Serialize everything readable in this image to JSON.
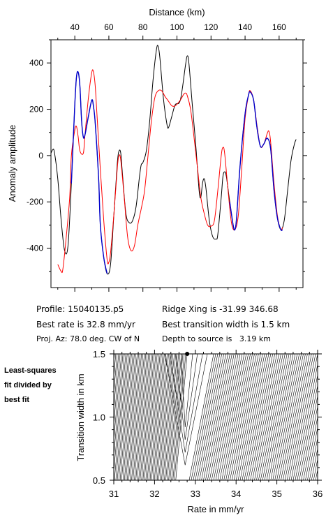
{
  "info": {
    "profile": "Profile: 15040135.p5",
    "best_rate": "Best rate is 32.8 mm/yr",
    "proj_az": "Proj. Az: 78.0 deg. CW of N",
    "ridge_xing": "Ridge Xing is -31.99 346.68",
    "best_transition": "Best transition width is 1.5 km",
    "depth": "Depth to source is   3.19 km"
  },
  "side_note": [
    "Least-squares",
    "fit divided by",
    "best fit"
  ],
  "colors": {
    "observed": "#000000",
    "model": "#ff0000",
    "fit_window": "#0000cc"
  },
  "chart_data": [
    {
      "type": "line",
      "xlabel": "Distance (km)",
      "ylabel": "Anomaly amplitude",
      "xlim": [
        26,
        174
      ],
      "ylim": [
        -570,
        500
      ],
      "xticks": [
        40,
        60,
        80,
        100,
        120,
        140,
        160
      ],
      "yticks": [
        -400,
        -200,
        0,
        200,
        400
      ],
      "grid": false,
      "series": [
        {
          "color": "#000000",
          "points": [
            [
              26,
              10
            ],
            [
              27,
              25
            ],
            [
              28,
              15
            ],
            [
              30,
              -100
            ],
            [
              32,
              -280
            ],
            [
              34,
              -410
            ],
            [
              36,
              -390
            ],
            [
              38,
              -120
            ],
            [
              40,
              220
            ],
            [
              41,
              340
            ],
            [
              42,
              360
            ],
            [
              43,
              300
            ],
            [
              44,
              150
            ],
            [
              45,
              80
            ],
            [
              46,
              90
            ],
            [
              48,
              170
            ],
            [
              50,
              240
            ],
            [
              51,
              210
            ],
            [
              52,
              140
            ],
            [
              54,
              -100
            ],
            [
              55,
              -300
            ],
            [
              57,
              -440
            ],
            [
              59,
              -510
            ],
            [
              61,
              -470
            ],
            [
              63,
              -250
            ],
            [
              65,
              -30
            ],
            [
              66,
              20
            ],
            [
              67,
              10
            ],
            [
              68,
              -80
            ],
            [
              70,
              -250
            ],
            [
              72,
              -290
            ],
            [
              74,
              -280
            ],
            [
              76,
              -220
            ],
            [
              78,
              -90
            ],
            [
              79,
              -40
            ],
            [
              80,
              -30
            ],
            [
              82,
              20
            ],
            [
              84,
              150
            ],
            [
              86,
              330
            ],
            [
              88,
              460
            ],
            [
              89,
              470
            ],
            [
              90,
              420
            ],
            [
              92,
              250
            ],
            [
              94,
              140
            ],
            [
              95,
              120
            ],
            [
              97,
              170
            ],
            [
              99,
              220
            ],
            [
              102,
              240
            ],
            [
              105,
              390
            ],
            [
              106,
              430
            ],
            [
              107,
              400
            ],
            [
              109,
              220
            ],
            [
              111,
              50
            ],
            [
              113,
              -150
            ],
            [
              114,
              -180
            ],
            [
              115,
              -120
            ],
            [
              116,
              -100
            ],
            [
              117,
              -140
            ],
            [
              119,
              -280
            ],
            [
              121,
              -350
            ],
            [
              123,
              -360
            ],
            [
              124,
              -340
            ],
            [
              126,
              -180
            ],
            [
              127,
              -90
            ],
            [
              128,
              -70
            ],
            [
              129,
              -90
            ],
            [
              131,
              -200
            ],
            [
              133,
              -300
            ],
            [
              134,
              -320
            ],
            [
              135,
              -270
            ],
            [
              137,
              -50
            ],
            [
              140,
              180
            ],
            [
              142,
              260
            ],
            [
              143,
              275
            ],
            [
              145,
              240
            ],
            [
              147,
              120
            ],
            [
              149,
              40
            ],
            [
              151,
              50
            ],
            [
              153,
              75
            ],
            [
              155,
              30
            ],
            [
              157,
              -150
            ],
            [
              159,
              -270
            ],
            [
              161,
              -320
            ],
            [
              163,
              -280
            ],
            [
              165,
              -150
            ],
            [
              167,
              -20
            ],
            [
              169,
              50
            ],
            [
              170,
              70
            ]
          ]
        },
        {
          "color": "#ff0000",
          "points": [
            [
              30,
              -470
            ],
            [
              32,
              -500
            ],
            [
              33,
              -490
            ],
            [
              35,
              -350
            ],
            [
              37,
              -180
            ],
            [
              38,
              0
            ],
            [
              40,
              110
            ],
            [
              41,
              125
            ],
            [
              42,
              80
            ],
            [
              43,
              20
            ],
            [
              45,
              10
            ],
            [
              46,
              90
            ],
            [
              48,
              250
            ],
            [
              50,
              360
            ],
            [
              51,
              360
            ],
            [
              52,
              300
            ],
            [
              53,
              180
            ],
            [
              55,
              -60
            ],
            [
              57,
              -280
            ],
            [
              59,
              -450
            ],
            [
              60,
              -460
            ],
            [
              61,
              -420
            ],
            [
              63,
              -250
            ],
            [
              65,
              -50
            ],
            [
              66,
              0
            ],
            [
              67,
              -20
            ],
            [
              69,
              -180
            ],
            [
              71,
              -350
            ],
            [
              73,
              -410
            ],
            [
              75,
              -390
            ],
            [
              77,
              -300
            ],
            [
              79,
              -230
            ],
            [
              81,
              -150
            ],
            [
              83,
              0
            ],
            [
              85,
              150
            ],
            [
              87,
              250
            ],
            [
              89,
              280
            ],
            [
              91,
              280
            ],
            [
              93,
              255
            ],
            [
              95,
              235
            ],
            [
              97,
              215
            ],
            [
              99,
              215
            ],
            [
              102,
              240
            ],
            [
              104,
              265
            ],
            [
              105,
              270
            ],
            [
              106,
              260
            ],
            [
              108,
              200
            ],
            [
              110,
              80
            ],
            [
              112,
              -50
            ],
            [
              114,
              -180
            ],
            [
              116,
              -250
            ],
            [
              118,
              -300
            ],
            [
              120,
              -305
            ],
            [
              122,
              -280
            ],
            [
              124,
              -150
            ],
            [
              126,
              0
            ],
            [
              127,
              35
            ],
            [
              128,
              10
            ],
            [
              130,
              -150
            ],
            [
              132,
              -290
            ],
            [
              134,
              -320
            ],
            [
              136,
              -260
            ],
            [
              138,
              -60
            ],
            [
              140,
              160
            ],
            [
              142,
              260
            ],
            [
              143,
              280
            ],
            [
              145,
              240
            ],
            [
              147,
              130
            ],
            [
              149,
              40
            ],
            [
              151,
              50
            ],
            [
              153,
              95
            ],
            [
              154,
              105
            ],
            [
              155,
              60
            ],
            [
              157,
              -120
            ],
            [
              159,
              -260
            ],
            [
              161,
              -320
            ],
            [
              162,
              -310
            ]
          ]
        },
        {
          "color": "#0000cc",
          "points": [
            [
              38,
              -120
            ],
            [
              40,
              220
            ],
            [
              41,
              340
            ],
            [
              42,
              360
            ],
            [
              43,
              300
            ],
            [
              44,
              150
            ],
            [
              45,
              80
            ],
            [
              46,
              90
            ],
            [
              48,
              170
            ],
            [
              50,
              240
            ],
            [
              51,
              210
            ],
            [
              52,
              140
            ],
            [
              54,
              -100
            ],
            [
              55,
              -300
            ],
            [
              57,
              -440
            ],
            [
              59,
              -510
            ]
          ]
        },
        {
          "color": "#0000cc",
          "points": [
            [
              131,
              -200
            ],
            [
              133,
              -300
            ],
            [
              134,
              -320
            ],
            [
              135,
              -270
            ],
            [
              137,
              -50
            ],
            [
              140,
              180
            ],
            [
              142,
              260
            ],
            [
              143,
              275
            ],
            [
              145,
              240
            ],
            [
              147,
              120
            ],
            [
              149,
              40
            ],
            [
              151,
              50
            ],
            [
              153,
              75
            ],
            [
              155,
              30
            ],
            [
              157,
              -150
            ],
            [
              159,
              -270
            ],
            [
              161,
              -320
            ],
            [
              162,
              -320
            ]
          ]
        }
      ]
    },
    {
      "type": "contour",
      "xlabel": "Rate in mm/yr",
      "ylabel": "Transition width in km",
      "xlim": [
        31,
        36
      ],
      "ylim": [
        0.5,
        1.5
      ],
      "xticks": [
        31,
        32,
        33,
        34,
        35,
        36
      ],
      "xtick_labels": [
        "31",
        "32",
        "33",
        "34",
        "35",
        "36"
      ],
      "yticks": [
        0.5,
        1.0,
        1.5
      ],
      "ytick_labels": [
        "0.5",
        "1.0",
        "1.5"
      ],
      "best_fit": {
        "rate": 32.8,
        "width": 1.5
      }
    }
  ]
}
